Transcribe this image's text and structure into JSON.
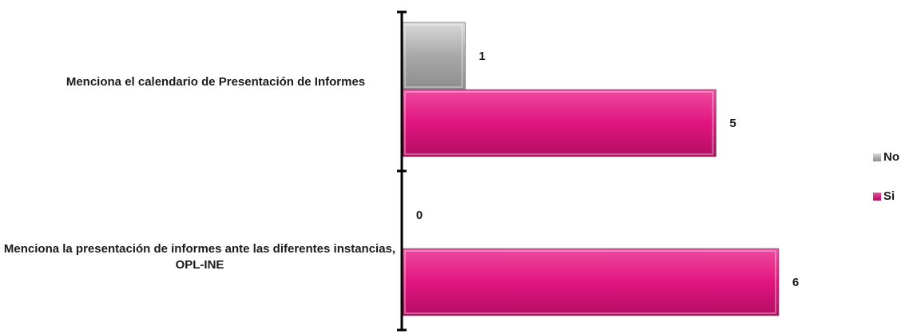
{
  "chart_data": {
    "type": "bar",
    "orientation": "horizontal",
    "categories": [
      "Menciona el calendario de Presentación de Informes",
      "Menciona la presentación de informes ante las diferentes instancias, OPL-INE"
    ],
    "series": [
      {
        "name": "No",
        "values": [
          1,
          0
        ],
        "color": "#a8a8a8"
      },
      {
        "name": "Si",
        "values": [
          5,
          6
        ],
        "color": "#e0157f"
      }
    ],
    "xlim": [
      0,
      7
    ],
    "grid": false,
    "legend": "right"
  },
  "legend": {
    "items": [
      {
        "label": "No",
        "color": "#a8a8a8"
      },
      {
        "label": "Si",
        "color": "#e0157f"
      }
    ]
  }
}
